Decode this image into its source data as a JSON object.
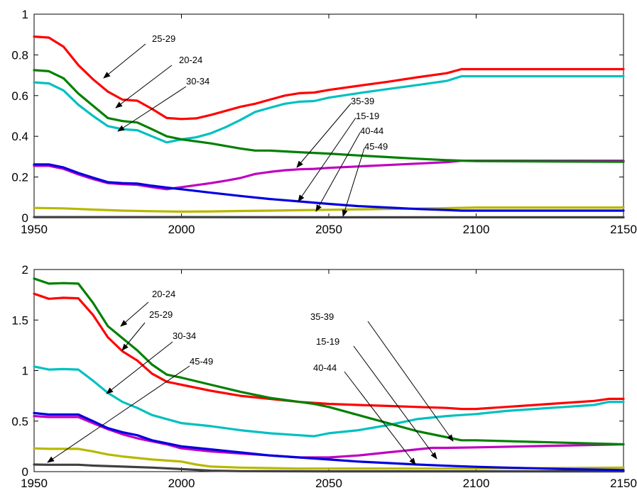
{
  "chart_data": [
    {
      "type": "line",
      "title": "",
      "xlabel": "",
      "ylabel": "",
      "xlim": [
        1950,
        2150
      ],
      "ylim": [
        0,
        1
      ],
      "xticks": [
        1950,
        2000,
        2050,
        2100,
        2150
      ],
      "yticks": [
        0,
        0.2,
        0.4,
        0.6,
        0.8,
        1
      ],
      "ytick_labels": [
        "0",
        "0.2",
        "0.4",
        "0.6",
        "0.8",
        "1"
      ],
      "grid": false,
      "legend": "none",
      "series": [
        {
          "color": "#ff0000",
          "x": [
            1950,
            1955,
            1960,
            1965,
            1970,
            1975,
            1980,
            1985,
            1990,
            1995,
            2000,
            2005,
            2010,
            2015,
            2020,
            2025,
            2030,
            2035,
            2040,
            2045,
            2050,
            2060,
            2070,
            2080,
            2090,
            2095,
            2100,
            2150
          ],
          "values": [
            0.89,
            0.885,
            0.84,
            0.75,
            0.68,
            0.62,
            0.58,
            0.575,
            0.535,
            0.49,
            0.485,
            0.488,
            0.505,
            0.525,
            0.545,
            0.56,
            0.58,
            0.6,
            0.612,
            0.615,
            0.628,
            0.648,
            0.668,
            0.69,
            0.71,
            0.73,
            0.73,
            0.73
          ]
        },
        {
          "color": "#008000",
          "x": [
            1950,
            1955,
            1960,
            1965,
            1970,
            1975,
            1980,
            1985,
            1990,
            1995,
            2000,
            2010,
            2020,
            2025,
            2030,
            2040,
            2050,
            2060,
            2070,
            2080,
            2090,
            2100,
            2150
          ],
          "values": [
            0.725,
            0.72,
            0.685,
            0.61,
            0.55,
            0.49,
            0.475,
            0.468,
            0.435,
            0.4,
            0.385,
            0.365,
            0.34,
            0.33,
            0.33,
            0.322,
            0.315,
            0.306,
            0.298,
            0.29,
            0.283,
            0.278,
            0.275
          ]
        },
        {
          "color": "#00c0c0",
          "x": [
            1950,
            1955,
            1960,
            1965,
            1970,
            1975,
            1980,
            1985,
            1990,
            1995,
            2000,
            2005,
            2010,
            2015,
            2020,
            2025,
            2030,
            2035,
            2040,
            2045,
            2050,
            2060,
            2070,
            2080,
            2090,
            2095,
            2100,
            2150
          ],
          "values": [
            0.665,
            0.66,
            0.625,
            0.555,
            0.5,
            0.45,
            0.435,
            0.43,
            0.4,
            0.37,
            0.385,
            0.395,
            0.415,
            0.445,
            0.48,
            0.52,
            0.54,
            0.56,
            0.57,
            0.573,
            0.59,
            0.612,
            0.632,
            0.652,
            0.672,
            0.695,
            0.695,
            0.695
          ]
        },
        {
          "color": "#0000e0",
          "x": [
            1950,
            1955,
            1960,
            1965,
            1970,
            1975,
            1980,
            1985,
            1990,
            1995,
            2000,
            2010,
            2020,
            2030,
            2040,
            2050,
            2060,
            2070,
            2080,
            2090,
            2095,
            2100,
            2150
          ],
          "values": [
            0.262,
            0.262,
            0.247,
            0.22,
            0.197,
            0.175,
            0.17,
            0.168,
            0.157,
            0.148,
            0.14,
            0.123,
            0.107,
            0.092,
            0.08,
            0.068,
            0.057,
            0.05,
            0.043,
            0.038,
            0.035,
            0.035,
            0.035
          ]
        },
        {
          "color": "#c000c0",
          "x": [
            1950,
            1955,
            1960,
            1965,
            1970,
            1975,
            1980,
            1985,
            1990,
            1995,
            2000,
            2005,
            2010,
            2015,
            2020,
            2025,
            2030,
            2035,
            2040,
            2045,
            2050,
            2060,
            2070,
            2080,
            2090,
            2095,
            2100,
            2150
          ],
          "values": [
            0.255,
            0.255,
            0.24,
            0.213,
            0.19,
            0.17,
            0.165,
            0.162,
            0.15,
            0.14,
            0.15,
            0.16,
            0.17,
            0.182,
            0.195,
            0.215,
            0.225,
            0.233,
            0.238,
            0.24,
            0.245,
            0.252,
            0.259,
            0.266,
            0.273,
            0.28,
            0.28,
            0.28
          ]
        },
        {
          "color": "#b8b800",
          "x": [
            1950,
            1960,
            1970,
            1980,
            1990,
            2000,
            2010,
            2020,
            2030,
            2040,
            2050,
            2060,
            2070,
            2080,
            2090,
            2100,
            2150
          ],
          "values": [
            0.048,
            0.046,
            0.04,
            0.035,
            0.032,
            0.03,
            0.031,
            0.033,
            0.035,
            0.037,
            0.039,
            0.041,
            0.043,
            0.045,
            0.047,
            0.05,
            0.05
          ]
        },
        {
          "color": "#404040",
          "x": [
            1950,
            2000,
            2050,
            2100,
            2150
          ],
          "values": [
            0.003,
            0.003,
            0.002,
            0.002,
            0.002
          ]
        }
      ],
      "annotations": [
        {
          "text": "25-29",
          "tail": [
            1971,
            0.77
          ]
        },
        {
          "text": "20-24",
          "tail": [
            1978,
            0.67
          ]
        },
        {
          "text": "30-34",
          "tail": [
            1988,
            0.57
          ]
        },
        {
          "text": "35-39",
          "tail": [
            2055,
            0.53
          ]
        },
        {
          "text": "15-19",
          "tail": [
            2060,
            0.46
          ]
        },
        {
          "text": "40-44",
          "tail": [
            2065,
            0.4
          ]
        },
        {
          "text": "45-49",
          "tail": [
            2070,
            0.34
          ]
        }
      ]
    },
    {
      "type": "line",
      "title": "",
      "xlabel": "",
      "ylabel": "",
      "xlim": [
        1950,
        2150
      ],
      "ylim": [
        0,
        2
      ],
      "xticks": [
        1950,
        2000,
        2050,
        2100,
        2150
      ],
      "yticks": [
        0,
        0.5,
        1,
        1.5,
        2
      ],
      "ytick_labels": [
        "0",
        "0.5",
        "1",
        "1.5",
        "2"
      ],
      "grid": false,
      "legend": "none",
      "series": [
        {
          "color": "#008000",
          "x": [
            1950,
            1955,
            1960,
            1965,
            1970,
            1975,
            1980,
            1985,
            1990,
            1995,
            2000,
            2010,
            2020,
            2030,
            2040,
            2045,
            2050,
            2060,
            2070,
            2080,
            2090,
            2095,
            2100,
            2150
          ],
          "values": [
            1.91,
            1.86,
            1.865,
            1.86,
            1.67,
            1.44,
            1.32,
            1.2,
            1.06,
            0.96,
            0.93,
            0.86,
            0.79,
            0.73,
            0.69,
            0.67,
            0.64,
            0.56,
            0.48,
            0.4,
            0.34,
            0.31,
            0.31,
            0.27
          ]
        },
        {
          "color": "#ff0000",
          "x": [
            1950,
            1955,
            1960,
            1965,
            1970,
            1975,
            1980,
            1985,
            1990,
            1995,
            2000,
            2010,
            2020,
            2030,
            2040,
            2050,
            2060,
            2070,
            2080,
            2090,
            2095,
            2100,
            2110,
            2120,
            2130,
            2140,
            2145,
            2150
          ],
          "values": [
            1.76,
            1.71,
            1.72,
            1.715,
            1.55,
            1.33,
            1.19,
            1.1,
            0.97,
            0.89,
            0.86,
            0.8,
            0.75,
            0.72,
            0.69,
            0.67,
            0.66,
            0.65,
            0.64,
            0.63,
            0.62,
            0.62,
            0.64,
            0.66,
            0.68,
            0.7,
            0.72,
            0.72
          ]
        },
        {
          "color": "#00c0c0",
          "x": [
            1950,
            1955,
            1960,
            1965,
            1970,
            1975,
            1980,
            1985,
            1990,
            1995,
            2000,
            2010,
            2020,
            2030,
            2040,
            2045,
            2050,
            2060,
            2070,
            2080,
            2090,
            2100,
            2110,
            2120,
            2130,
            2140,
            2145,
            2150
          ],
          "values": [
            1.04,
            1.01,
            1.015,
            1.01,
            0.9,
            0.78,
            0.69,
            0.63,
            0.56,
            0.52,
            0.48,
            0.45,
            0.41,
            0.38,
            0.36,
            0.35,
            0.38,
            0.41,
            0.46,
            0.52,
            0.55,
            0.57,
            0.6,
            0.62,
            0.64,
            0.66,
            0.69,
            0.69
          ]
        },
        {
          "color": "#0000e0",
          "x": [
            1950,
            1955,
            1960,
            1965,
            1970,
            1975,
            1980,
            1985,
            1990,
            1995,
            2000,
            2010,
            2020,
            2030,
            2040,
            2050,
            2060,
            2070,
            2080,
            2090,
            2100,
            2110,
            2120,
            2130,
            2140,
            2150
          ],
          "values": [
            0.58,
            0.565,
            0.565,
            0.565,
            0.5,
            0.43,
            0.39,
            0.36,
            0.31,
            0.28,
            0.25,
            0.22,
            0.19,
            0.16,
            0.14,
            0.12,
            0.1,
            0.085,
            0.07,
            0.058,
            0.048,
            0.04,
            0.032,
            0.025,
            0.02,
            0.015
          ]
        },
        {
          "color": "#c000c0",
          "x": [
            1950,
            1955,
            1960,
            1965,
            1970,
            1975,
            1980,
            1985,
            1990,
            1995,
            2000,
            2010,
            2020,
            2030,
            2040,
            2050,
            2060,
            2070,
            2080,
            2085,
            2090,
            2100,
            2150
          ],
          "values": [
            0.55,
            0.54,
            0.54,
            0.54,
            0.48,
            0.42,
            0.37,
            0.33,
            0.3,
            0.27,
            0.23,
            0.2,
            0.18,
            0.16,
            0.14,
            0.14,
            0.16,
            0.19,
            0.22,
            0.235,
            0.235,
            0.24,
            0.27
          ]
        },
        {
          "color": "#b8b800",
          "x": [
            1950,
            1955,
            1960,
            1965,
            1970,
            1975,
            1980,
            1990,
            2000,
            2005,
            2010,
            2020,
            2030,
            2040,
            2050,
            2100,
            2150
          ],
          "values": [
            0.23,
            0.225,
            0.225,
            0.225,
            0.2,
            0.17,
            0.15,
            0.12,
            0.1,
            0.07,
            0.05,
            0.04,
            0.035,
            0.03,
            0.03,
            0.03,
            0.04
          ]
        },
        {
          "color": "#404040",
          "x": [
            1950,
            1955,
            1960,
            1965,
            1970,
            1980,
            1990,
            2000,
            2010,
            2020,
            2050,
            2100,
            2150
          ],
          "values": [
            0.07,
            0.068,
            0.068,
            0.068,
            0.06,
            0.05,
            0.04,
            0.025,
            0.01,
            0.005,
            0.003,
            0.003,
            0.003
          ]
        }
      ],
      "annotations": [
        {
          "text": "20-24",
          "tail": [
            1980,
            1.63
          ]
        },
        {
          "text": "25-29",
          "tail": [
            1988,
            1.47
          ]
        },
        {
          "text": "30-34",
          "tail": [
            1998,
            1.2
          ]
        },
        {
          "text": "45-49",
          "tail": [
            2010,
            0.98
          ]
        },
        {
          "text": "35-39",
          "tail": [
            2063,
            1.5
          ]
        },
        {
          "text": "15-19",
          "tail": [
            2065,
            1.22
          ]
        },
        {
          "text": "40-44",
          "tail": [
            2058,
            0.97
          ]
        }
      ]
    }
  ]
}
